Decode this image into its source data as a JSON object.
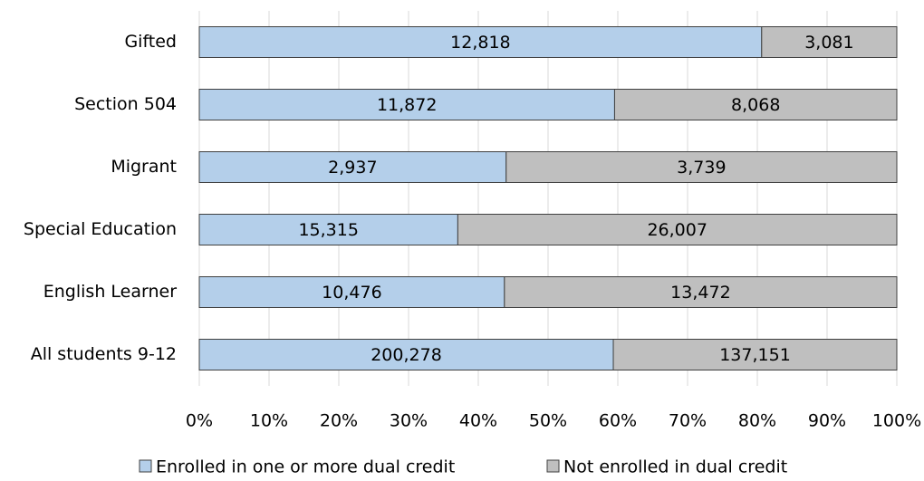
{
  "chart_data": {
    "type": "bar",
    "orientation": "horizontal",
    "stacked": "percent",
    "categories": [
      "Gifted",
      "Section 504",
      "Migrant",
      "Special Education",
      "English Learner",
      "All students 9-12"
    ],
    "series": [
      {
        "name": "Enrolled in one or more dual credit",
        "color": "#b4cfea",
        "values": [
          12818,
          11872,
          2937,
          15315,
          10476,
          200278
        ],
        "value_labels": [
          "12,818",
          "11,872",
          "2,937",
          "15,315",
          "10,476",
          "200,278"
        ]
      },
      {
        "name": "Not enrolled in dual credit",
        "color": "#bfbfbf",
        "values": [
          3081,
          8068,
          3739,
          26007,
          13472,
          137151
        ],
        "value_labels": [
          "3,081",
          "8,068",
          "3,739",
          "26,007",
          "13,472",
          "137,151"
        ]
      }
    ],
    "xlim": [
      0,
      100
    ],
    "xticks": [
      {
        "value": 0,
        "label": "0%"
      },
      {
        "value": 10,
        "label": "10%"
      },
      {
        "value": 20,
        "label": "20%"
      },
      {
        "value": 30,
        "label": "30%"
      },
      {
        "value": 40,
        "label": "40%"
      },
      {
        "value": 50,
        "label": "50%"
      },
      {
        "value": 60,
        "label": "60%"
      },
      {
        "value": 70,
        "label": "70%"
      },
      {
        "value": 80,
        "label": "80%"
      },
      {
        "value": 90,
        "label": "90%"
      },
      {
        "value": 100,
        "label": "100%"
      }
    ],
    "grid": true,
    "legend": "bottom"
  }
}
